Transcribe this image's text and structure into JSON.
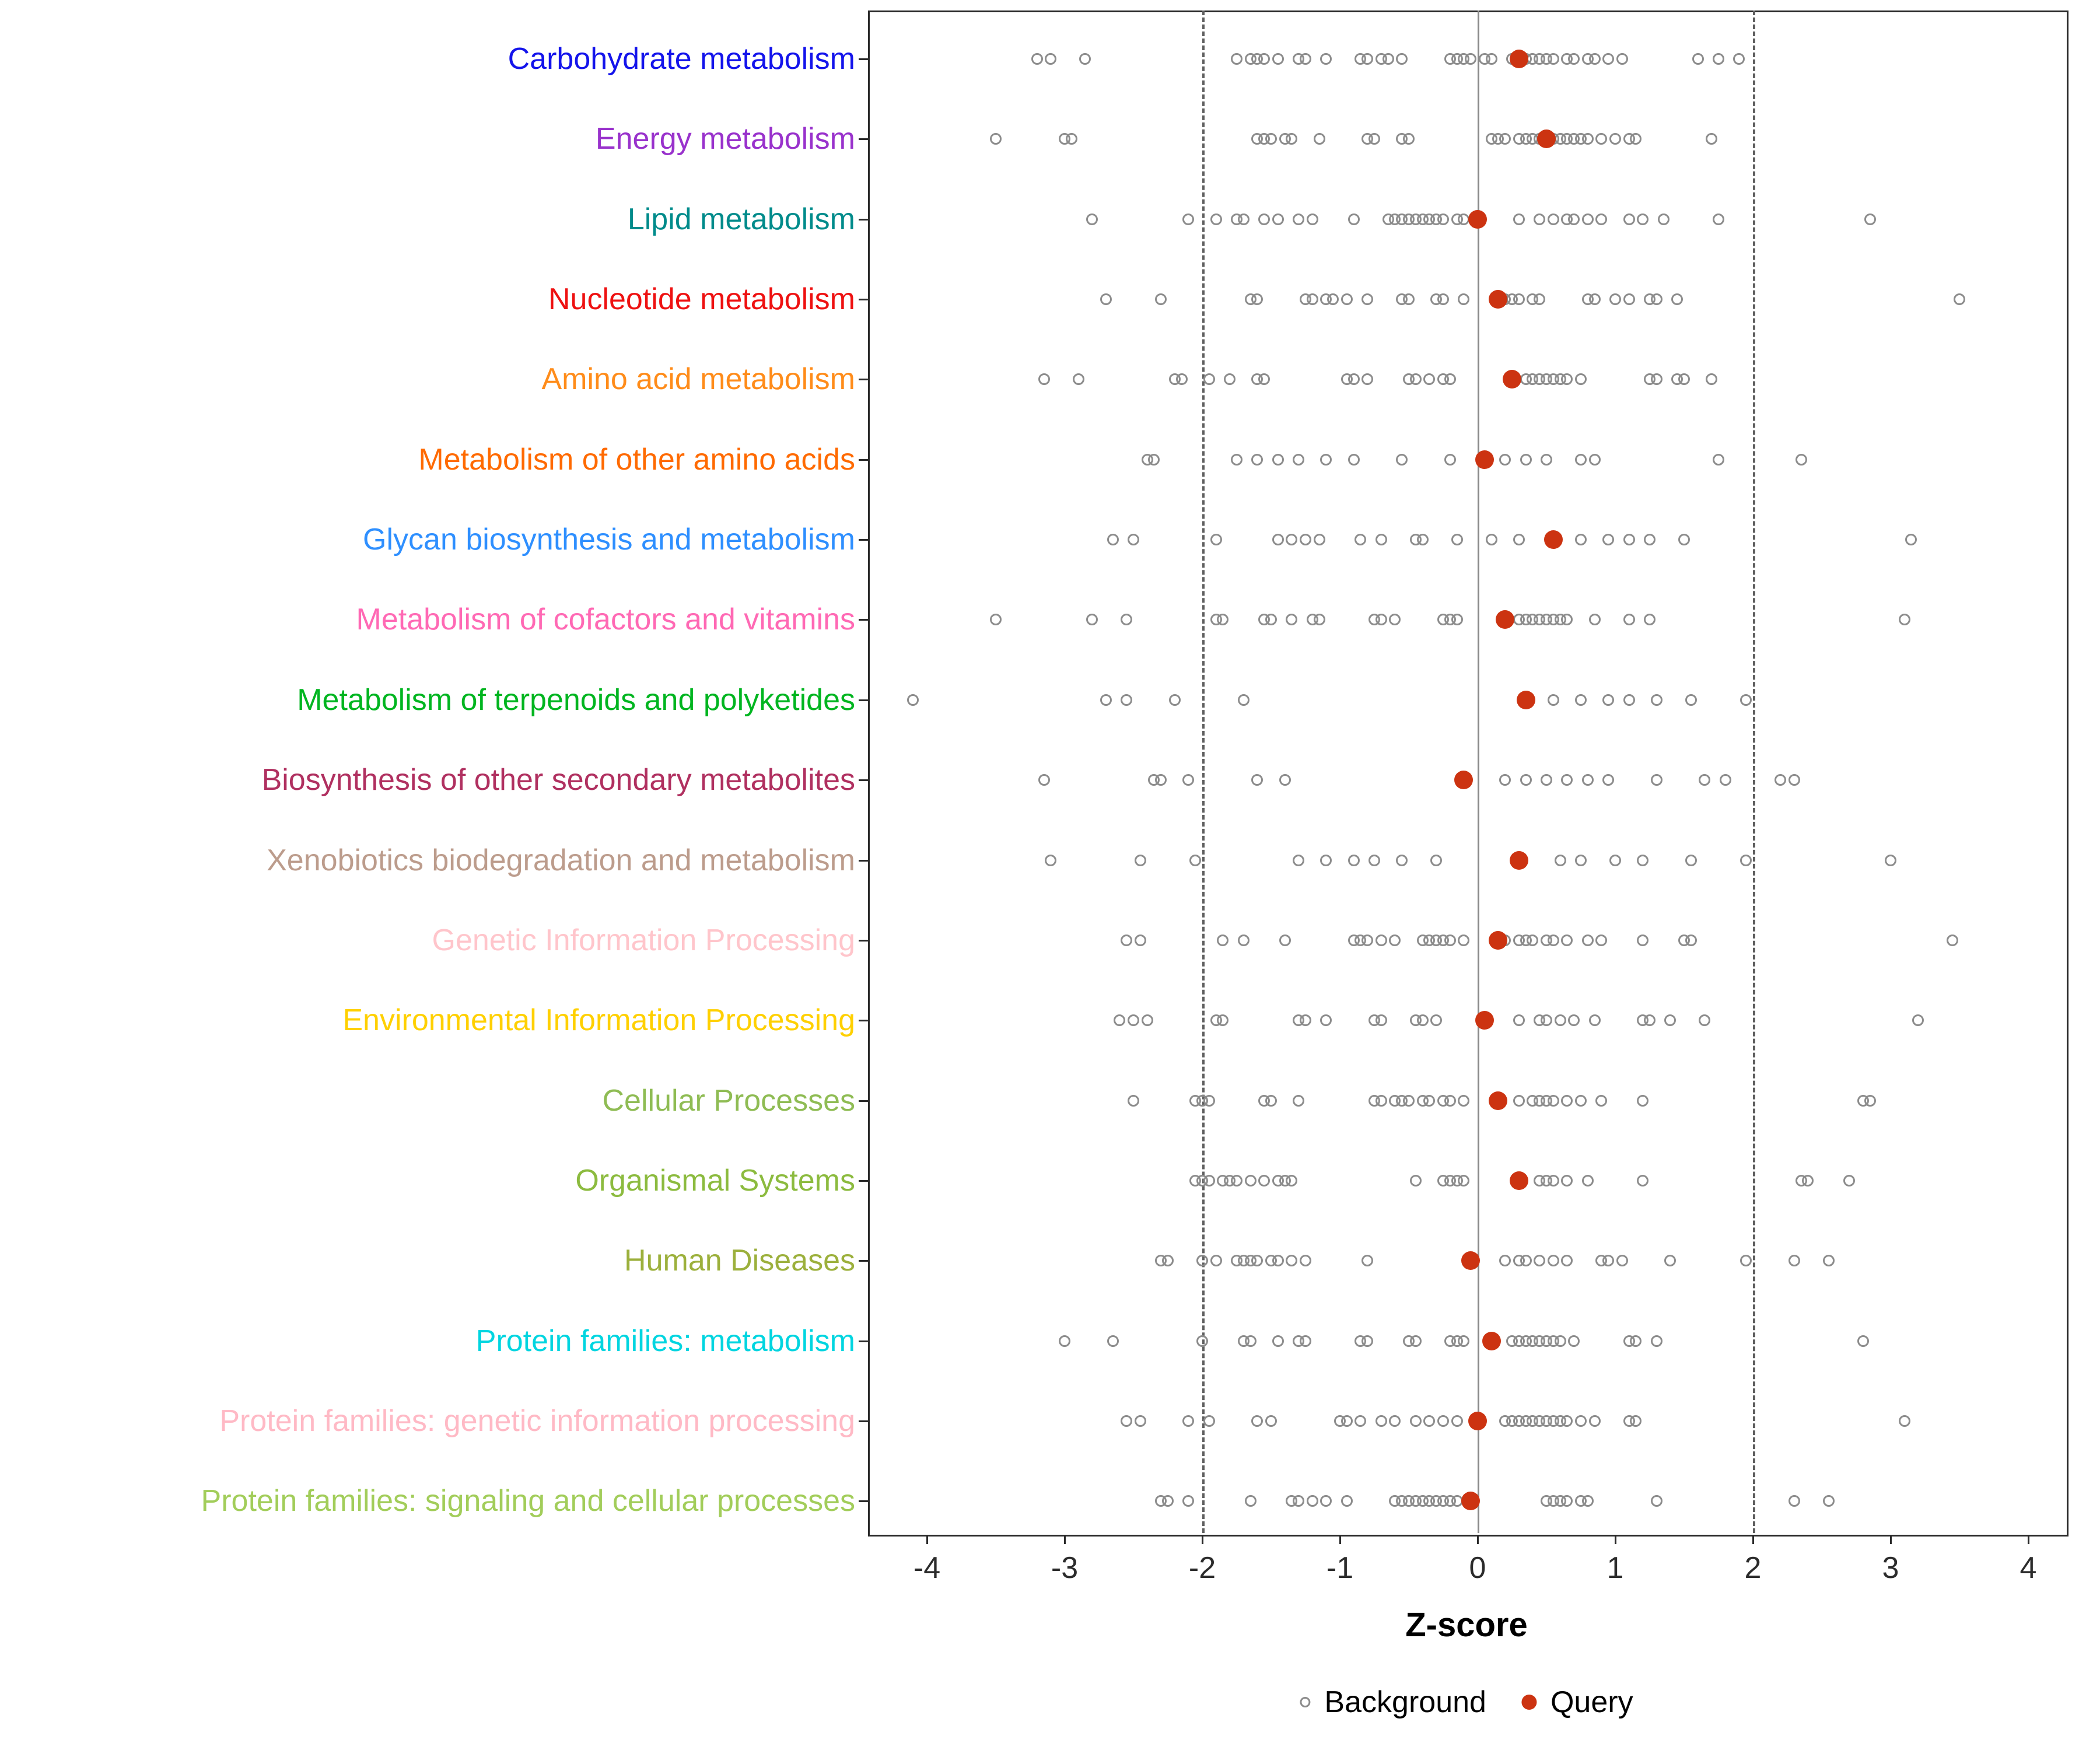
{
  "xlabel": "Z-score",
  "legend": {
    "background_label": "Background",
    "query_label": "Query"
  },
  "colors": {
    "query": "#CC3311",
    "background_stroke": "#8C8C8C",
    "dashed_line": "#5F5F5F",
    "zero_line": "#8A8A8A",
    "panel_border": "#2B2B2B"
  },
  "chart_data": {
    "type": "scatter",
    "title": "",
    "xlabel": "Z-score",
    "xlim": [
      -4.4,
      4.3
    ],
    "x_ticks": [
      -4,
      -3,
      -2,
      -1,
      0,
      1,
      2,
      3,
      4
    ],
    "reference_lines": {
      "dashed_at": [
        -2,
        2
      ],
      "solid_at": 0
    },
    "legend": [
      "Background",
      "Query"
    ],
    "legend_position": "bottom",
    "grid": false,
    "rows": [
      {
        "label": "Carbohydrate metabolism",
        "color": "#1414EB",
        "query": 0.3,
        "background": [
          -3.2,
          -3.1,
          -2.85,
          -1.75,
          -1.65,
          -1.6,
          -1.55,
          -1.45,
          -1.3,
          -1.25,
          -1.1,
          -0.85,
          -0.8,
          -0.7,
          -0.65,
          -0.55,
          -0.2,
          -0.15,
          -0.1,
          -0.05,
          0.05,
          0.1,
          0.25,
          0.35,
          0.4,
          0.45,
          0.5,
          0.55,
          0.65,
          0.7,
          0.8,
          0.85,
          0.95,
          1.05,
          1.6,
          1.75,
          1.9
        ]
      },
      {
        "label": "Energy metabolism",
        "color": "#9932CC",
        "query": 0.5,
        "background": [
          -3.5,
          -3.0,
          -2.95,
          -1.6,
          -1.55,
          -1.5,
          -1.4,
          -1.35,
          -1.15,
          -0.8,
          -0.75,
          -0.55,
          -0.5,
          0.1,
          0.15,
          0.2,
          0.3,
          0.35,
          0.4,
          0.45,
          0.55,
          0.6,
          0.65,
          0.7,
          0.75,
          0.8,
          0.9,
          1.0,
          1.1,
          1.15,
          1.7
        ]
      },
      {
        "label": "Lipid metabolism",
        "color": "#008B8B",
        "query": 0.0,
        "background": [
          -2.8,
          -2.1,
          -1.9,
          -1.75,
          -1.7,
          -1.55,
          -1.45,
          -1.3,
          -1.2,
          -0.9,
          -0.65,
          -0.6,
          -0.55,
          -0.5,
          -0.45,
          -0.4,
          -0.35,
          -0.3,
          -0.25,
          -0.15,
          -0.1,
          0.3,
          0.45,
          0.55,
          0.65,
          0.7,
          0.8,
          0.9,
          1.1,
          1.2,
          1.35,
          1.75,
          2.85
        ]
      },
      {
        "label": "Nucleotide metabolism",
        "color": "#EE1111",
        "query": 0.15,
        "background": [
          -2.7,
          -2.3,
          -1.65,
          -1.6,
          -1.25,
          -1.2,
          -1.1,
          -1.05,
          -0.95,
          -0.8,
          -0.55,
          -0.5,
          -0.3,
          -0.25,
          -0.1,
          0.2,
          0.25,
          0.3,
          0.4,
          0.45,
          0.8,
          0.85,
          1.0,
          1.1,
          1.25,
          1.3,
          1.45,
          3.5
        ]
      },
      {
        "label": "Amino acid metabolism",
        "color": "#FF8C1A",
        "query": 0.25,
        "background": [
          -3.15,
          -2.9,
          -2.2,
          -2.15,
          -1.95,
          -1.8,
          -1.6,
          -1.55,
          -0.95,
          -0.9,
          -0.8,
          -0.5,
          -0.45,
          -0.35,
          -0.25,
          -0.2,
          0.35,
          0.4,
          0.45,
          0.5,
          0.55,
          0.6,
          0.65,
          0.75,
          1.25,
          1.3,
          1.45,
          1.5,
          1.7
        ]
      },
      {
        "label": "Metabolism of other amino acids",
        "color": "#FF6A00",
        "query": 0.05,
        "background": [
          -2.4,
          -2.35,
          -1.75,
          -1.6,
          -1.45,
          -1.3,
          -1.1,
          -0.9,
          -0.55,
          -0.2,
          0.2,
          0.35,
          0.5,
          0.75,
          0.85,
          1.75,
          2.35
        ]
      },
      {
        "label": "Glycan biosynthesis and metabolism",
        "color": "#2E8FFF",
        "query": 0.55,
        "background": [
          -2.65,
          -2.5,
          -1.9,
          -1.45,
          -1.35,
          -1.25,
          -1.15,
          -0.85,
          -0.7,
          -0.45,
          -0.4,
          -0.15,
          0.1,
          0.3,
          0.75,
          0.95,
          1.1,
          1.25,
          1.5,
          3.15
        ]
      },
      {
        "label": "Metabolism of cofactors and vitamins",
        "color": "#FF69B4",
        "query": 0.2,
        "background": [
          -3.5,
          -2.8,
          -2.55,
          -1.9,
          -1.85,
          -1.55,
          -1.5,
          -1.35,
          -1.2,
          -1.15,
          -0.75,
          -0.7,
          -0.6,
          -0.25,
          -0.2,
          -0.15,
          0.3,
          0.35,
          0.4,
          0.45,
          0.5,
          0.55,
          0.6,
          0.65,
          0.85,
          1.1,
          1.25,
          3.1
        ]
      },
      {
        "label": "Metabolism of terpenoids and polyketides",
        "color": "#00B520",
        "query": 0.35,
        "background": [
          -4.1,
          -2.7,
          -2.55,
          -2.2,
          -1.7,
          0.55,
          0.75,
          0.95,
          1.1,
          1.3,
          1.55,
          1.95
        ]
      },
      {
        "label": "Biosynthesis of other secondary metabolites",
        "color": "#B03060",
        "query": -0.1,
        "background": [
          -3.15,
          -2.35,
          -2.3,
          -2.1,
          -1.6,
          -1.4,
          0.2,
          0.35,
          0.5,
          0.65,
          0.8,
          0.95,
          1.3,
          1.65,
          1.8,
          2.2,
          2.3
        ]
      },
      {
        "label": "Xenobiotics biodegradation and metabolism",
        "color": "#BC9C8C",
        "query": 0.3,
        "background": [
          -3.1,
          -2.45,
          -2.05,
          -1.3,
          -1.1,
          -0.9,
          -0.75,
          -0.55,
          -0.3,
          0.6,
          0.75,
          1.0,
          1.2,
          1.55,
          1.95,
          3.0
        ]
      },
      {
        "label": "Genetic Information Processing",
        "color": "#FFC5CB",
        "query": 0.15,
        "background": [
          -2.55,
          -2.45,
          -1.85,
          -1.7,
          -1.4,
          -0.9,
          -0.85,
          -0.8,
          -0.7,
          -0.6,
          -0.4,
          -0.35,
          -0.3,
          -0.25,
          -0.2,
          -0.1,
          0.2,
          0.3,
          0.35,
          0.4,
          0.5,
          0.55,
          0.65,
          0.8,
          0.9,
          1.2,
          1.5,
          1.55,
          3.45
        ]
      },
      {
        "label": "Environmental Information Processing",
        "color": "#FFD000",
        "query": 0.05,
        "background": [
          -2.6,
          -2.5,
          -2.4,
          -1.9,
          -1.85,
          -1.3,
          -1.25,
          -1.1,
          -0.75,
          -0.7,
          -0.45,
          -0.4,
          -0.3,
          0.3,
          0.45,
          0.5,
          0.6,
          0.7,
          0.85,
          1.2,
          1.25,
          1.4,
          1.65,
          3.2
        ]
      },
      {
        "label": "Cellular Processes",
        "color": "#8FBC54",
        "query": 0.15,
        "background": [
          -2.5,
          -2.05,
          -2.0,
          -1.95,
          -1.55,
          -1.5,
          -1.3,
          -0.75,
          -0.7,
          -0.6,
          -0.55,
          -0.5,
          -0.4,
          -0.35,
          -0.25,
          -0.2,
          -0.1,
          0.3,
          0.4,
          0.45,
          0.5,
          0.55,
          0.65,
          0.75,
          0.9,
          1.2,
          2.8,
          2.85
        ]
      },
      {
        "label": "Organismal Systems",
        "color": "#8CBB3F",
        "query": 0.3,
        "background": [
          -2.05,
          -2.0,
          -1.95,
          -1.85,
          -1.8,
          -1.75,
          -1.65,
          -1.55,
          -1.45,
          -1.4,
          -1.35,
          -0.45,
          -0.25,
          -0.2,
          -0.15,
          -0.1,
          0.45,
          0.5,
          0.55,
          0.65,
          0.8,
          1.2,
          2.35,
          2.4,
          2.7
        ]
      },
      {
        "label": "Human Diseases",
        "color": "#9CB03C",
        "query": -0.05,
        "background": [
          -2.3,
          -2.25,
          -2.0,
          -1.9,
          -1.75,
          -1.7,
          -1.65,
          -1.6,
          -1.5,
          -1.45,
          -1.35,
          -1.25,
          -0.8,
          0.2,
          0.3,
          0.35,
          0.45,
          0.55,
          0.65,
          0.9,
          0.95,
          1.05,
          1.4,
          1.95,
          2.3,
          2.55
        ]
      },
      {
        "label": "Protein families: metabolism",
        "color": "#00D5E0",
        "query": 0.1,
        "background": [
          -3.0,
          -2.65,
          -2.0,
          -1.7,
          -1.65,
          -1.45,
          -1.3,
          -1.25,
          -0.85,
          -0.8,
          -0.5,
          -0.45,
          -0.2,
          -0.15,
          -0.1,
          0.25,
          0.3,
          0.35,
          0.4,
          0.45,
          0.5,
          0.55,
          0.6,
          0.7,
          1.1,
          1.15,
          1.3,
          2.8
        ]
      },
      {
        "label": "Protein families: genetic information processing",
        "color": "#FFB9C5",
        "query": 0.0,
        "background": [
          -2.55,
          -2.45,
          -2.1,
          -1.95,
          -1.6,
          -1.5,
          -1.0,
          -0.95,
          -0.85,
          -0.7,
          -0.6,
          -0.45,
          -0.35,
          -0.25,
          -0.15,
          0.2,
          0.25,
          0.3,
          0.35,
          0.4,
          0.45,
          0.5,
          0.55,
          0.6,
          0.65,
          0.75,
          0.85,
          1.1,
          1.15,
          3.1
        ]
      },
      {
        "label": "Protein families: signaling and cellular processes",
        "color": "#A2CD5A",
        "query": -0.05,
        "background": [
          -2.3,
          -2.25,
          -2.1,
          -1.65,
          -1.35,
          -1.3,
          -1.2,
          -1.1,
          -0.95,
          -0.6,
          -0.55,
          -0.5,
          -0.45,
          -0.4,
          -0.35,
          -0.3,
          -0.25,
          -0.2,
          -0.15,
          0.5,
          0.55,
          0.6,
          0.65,
          0.75,
          0.8,
          1.3,
          2.3,
          2.55
        ]
      }
    ]
  }
}
